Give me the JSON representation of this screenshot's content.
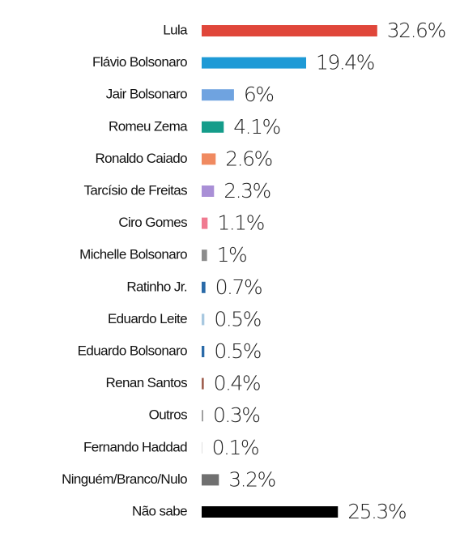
{
  "chart_data": {
    "type": "bar",
    "orientation": "horizontal",
    "categories": [
      "Lula",
      "Flávio Bolsonaro",
      "Jair Bolsonaro",
      "Romeu Zema",
      "Ronaldo Caiado",
      "Tarcísio de Freitas",
      "Ciro Gomes",
      "Michelle Bolsonaro",
      "Ratinho Jr.",
      "Eduardo Leite",
      "Eduardo Bolsonaro",
      "Renan Santos",
      "Outros",
      "Fernando Haddad",
      "Ninguém/Branco/Nulo",
      "Não sabe"
    ],
    "values": [
      32.6,
      19.4,
      6,
      4.1,
      2.6,
      2.3,
      1.1,
      1,
      0.7,
      0.5,
      0.5,
      0.4,
      0.3,
      0.1,
      3.2,
      25.3
    ],
    "value_labels": [
      "32.6%",
      "19.4%",
      "6%",
      "4.1%",
      "2.6%",
      "2.3%",
      "1.1%",
      "1%",
      "0.7%",
      "0.5%",
      "0.5%",
      "0.4%",
      "0.3%",
      "0.1%",
      "3.2%",
      "25.3%"
    ],
    "colors": [
      "#e0463a",
      "#1e9ad6",
      "#6fa3e0",
      "#149c8a",
      "#f08a60",
      "#a98fd6",
      "#f07a90",
      "#8c8c8c",
      "#2a6aa8",
      "#a8c8e0",
      "#2a6aa8",
      "#a06050",
      "#a0a0a0",
      "#d0d0d0",
      "#707070",
      "#000000"
    ]
  }
}
